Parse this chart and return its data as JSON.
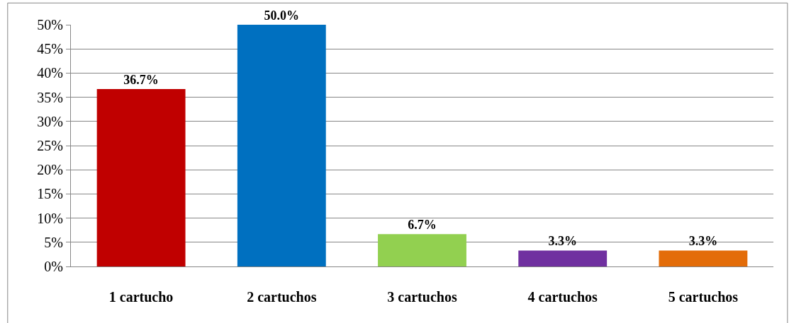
{
  "chart_data": {
    "type": "bar",
    "categories": [
      "1 cartucho",
      "2 cartuchos",
      "3 cartuchos",
      "4 cartuchos",
      "5 cartuchos"
    ],
    "values": [
      36.7,
      50.0,
      6.7,
      3.3,
      3.3
    ],
    "colors": [
      "#c00000",
      "#0070c0",
      "#92d050",
      "#7030a0",
      "#e36c09"
    ],
    "value_labels": [
      "36.7%",
      "50.0%",
      "6.7%",
      "3.3%",
      "3.3%"
    ],
    "ylim": [
      0,
      50
    ],
    "yticks": [
      {
        "value": 0,
        "label": "0%"
      },
      {
        "value": 5,
        "label": "5%"
      },
      {
        "value": 10,
        "label": "10%"
      },
      {
        "value": 15,
        "label": "15%"
      },
      {
        "value": 20,
        "label": "20%"
      },
      {
        "value": 25,
        "label": "25%"
      },
      {
        "value": 30,
        "label": "30%"
      },
      {
        "value": 35,
        "label": "35%"
      },
      {
        "value": 40,
        "label": "40%"
      },
      {
        "value": 45,
        "label": "45%"
      },
      {
        "value": 50,
        "label": "50%"
      }
    ],
    "grid": "y"
  }
}
